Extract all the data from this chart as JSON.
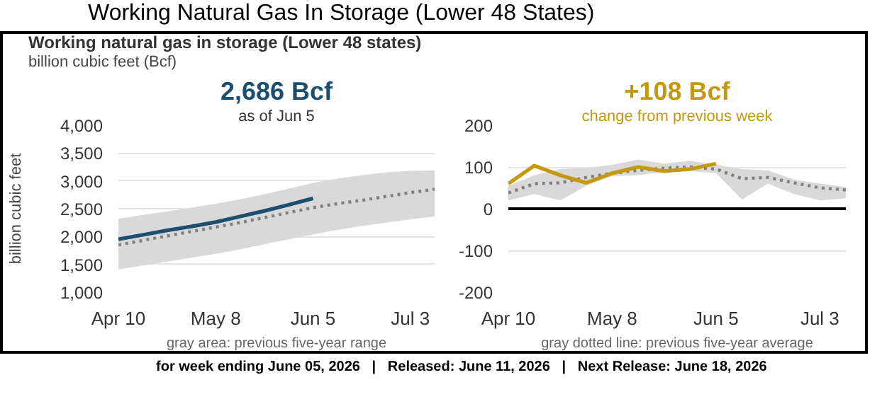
{
  "chart_data": [
    {
      "type": "other",
      "title": "Working Natural Gas In Storage (Lower 48 States)",
      "subtitle": "Working natural gas in storage (Lower 48 states)",
      "annotations": [
        "billion cubic feet (Bcf)",
        "for week ending June 05, 2026   |   Released: June 11, 2026   |   Next Release: June 18, 2026"
      ]
    },
    {
      "type": "line",
      "title": "2,686 Bcf",
      "subtitle": "as of Jun 5",
      "ylabel": "billion cubic feet",
      "x": [
        "2026-04-10",
        "2026-04-17",
        "2026-04-24",
        "2026-05-01",
        "2026-05-08",
        "2026-05-15",
        "2026-05-22",
        "2026-05-29",
        "2026-06-05",
        "2026-06-12",
        "2026-06-19",
        "2026-06-26",
        "2026-07-03",
        "2026-07-10"
      ],
      "series": [
        {
          "color": "#808080",
          "line_style": "dotted",
          "values": [
            1850,
            1930,
            2010,
            2090,
            2170,
            2250,
            2340,
            2430,
            2520,
            2590,
            2650,
            2720,
            2790,
            2850
          ],
          "lower": [
            1410,
            1480,
            1550,
            1620,
            1690,
            1770,
            1860,
            1950,
            2040,
            2120,
            2190,
            2250,
            2310,
            2360
          ],
          "upper": [
            2320,
            2390,
            2450,
            2520,
            2590,
            2670,
            2760,
            2860,
            2965,
            3040,
            3100,
            3150,
            3180,
            3190
          ]
        },
        {
          "color": "#1c4e6e",
          "line_style": "solid",
          "values": [
            1950,
            2030,
            2110,
            2180,
            2260,
            2360,
            2460,
            2570,
            2686,
            null,
            null,
            null,
            null,
            null
          ]
        }
      ],
      "xlim": [
        "2026-04-10",
        "2026-07-10"
      ],
      "xticks": [
        {
          "value": "2026-04-10",
          "label": "Apr 10"
        },
        {
          "value": "2026-05-08",
          "label": "May 8"
        },
        {
          "value": "2026-06-05",
          "label": "Jun 5"
        },
        {
          "value": "2026-07-03",
          "label": "Jul 3"
        }
      ],
      "ylim": [
        1000,
        4000
      ],
      "yticks": [
        {
          "value": 1000,
          "label": "1,000"
        },
        {
          "value": 1500,
          "label": "1,500"
        },
        {
          "value": 2000,
          "label": "2,000"
        },
        {
          "value": 2500,
          "label": "2,500"
        },
        {
          "value": 3000,
          "label": "3,000"
        },
        {
          "value": 3500,
          "label": "3,500"
        },
        {
          "value": 4000,
          "label": "4,000"
        }
      ],
      "grid": "y",
      "marker": "none",
      "annotations": [
        "gray area: previous five-year range"
      ]
    },
    {
      "type": "line",
      "title": "+108 Bcf",
      "subtitle": "change from previous week",
      "x": [
        "2026-04-10",
        "2026-04-17",
        "2026-04-24",
        "2026-05-01",
        "2026-05-08",
        "2026-05-15",
        "2026-05-22",
        "2026-05-29",
        "2026-06-05",
        "2026-06-12",
        "2026-06-19",
        "2026-06-26",
        "2026-07-03",
        "2026-07-10"
      ],
      "series": [
        {
          "color": "#808080",
          "line_style": "dotted",
          "values": [
            38,
            60,
            62,
            75,
            85,
            92,
            97,
            100,
            95,
            72,
            75,
            62,
            50,
            45
          ],
          "lower": [
            20,
            35,
            20,
            55,
            78,
            80,
            88,
            90,
            85,
            22,
            60,
            35,
            20,
            25
          ],
          "upper": [
            55,
            80,
            95,
            98,
            105,
            118,
            108,
            115,
            105,
            95,
            92,
            70,
            60,
            52
          ]
        },
        {
          "color": "#c4980f",
          "line_style": "solid",
          "values": [
            60,
            103,
            80,
            62,
            85,
            100,
            90,
            95,
            108,
            null,
            null,
            null,
            null,
            null
          ]
        }
      ],
      "xlim": [
        "2026-04-10",
        "2026-07-10"
      ],
      "xticks": [
        {
          "value": "2026-04-10",
          "label": "Apr 10"
        },
        {
          "value": "2026-05-08",
          "label": "May 8"
        },
        {
          "value": "2026-06-05",
          "label": "Jun 5"
        },
        {
          "value": "2026-07-03",
          "label": "Jul 3"
        }
      ],
      "ylim": [
        -200,
        200
      ],
      "yticks": [
        -200,
        -100,
        0,
        100,
        200
      ],
      "ref_lines": [
        {
          "axis": "y",
          "value": 0,
          "color": "#000000"
        }
      ],
      "grid": "y",
      "marker": "none",
      "annotations": [
        "gray dotted line: previous five-year average"
      ]
    }
  ]
}
